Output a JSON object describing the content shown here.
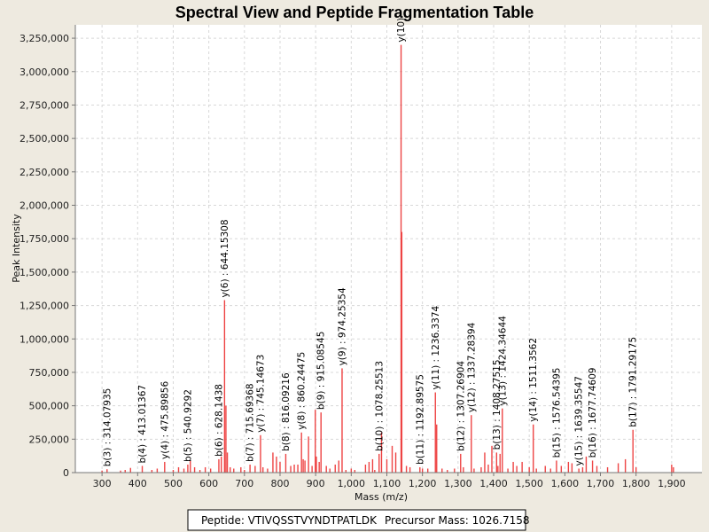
{
  "chart_data": {
    "type": "bar",
    "title": "Spectral View and Peptide Fragmentation Table",
    "xlabel": "Mass (m/z)",
    "ylabel": "Peak Intensity",
    "xlim": [
      225,
      1985
    ],
    "ylim": [
      0,
      3350000
    ],
    "x_ticks": [
      300,
      400,
      500,
      600,
      700,
      800,
      900,
      1000,
      1100,
      1200,
      1300,
      1400,
      1500,
      1600,
      1700,
      1800,
      1900
    ],
    "x_tick_labels": [
      "300",
      "400",
      "500",
      "600",
      "700",
      "800",
      "900",
      "1,000",
      "1,100",
      "1,200",
      "1,300",
      "1,400",
      "1,500",
      "1,600",
      "1,700",
      "1,800",
      "1,900"
    ],
    "y_ticks": [
      0,
      250000,
      500000,
      750000,
      1000000,
      1250000,
      1500000,
      1750000,
      2000000,
      2250000,
      2500000,
      2750000,
      3000000,
      3250000
    ],
    "y_tick_labels": [
      "0",
      "250,000",
      "500,000",
      "750,000",
      "1,000,000",
      "1,250,000",
      "1,500,000",
      "1,750,000",
      "2,000,000",
      "2,250,000",
      "2,500,000",
      "2,750,000",
      "3,000,000",
      "3,250,000"
    ],
    "grid": true,
    "bar_color": "#ee4444",
    "peaks": [
      [
        300,
        15000
      ],
      [
        314.07935,
        25000
      ],
      [
        352,
        15000
      ],
      [
        365,
        20000
      ],
      [
        380,
        35000
      ],
      [
        413.01367,
        50000
      ],
      [
        440,
        20000
      ],
      [
        455,
        30000
      ],
      [
        475.89856,
        80000
      ],
      [
        500,
        20000
      ],
      [
        515,
        40000
      ],
      [
        530,
        30000
      ],
      [
        540.9292,
        60000
      ],
      [
        548,
        90000
      ],
      [
        560,
        40000
      ],
      [
        575,
        20000
      ],
      [
        590,
        40000
      ],
      [
        605,
        30000
      ],
      [
        628.1438,
        100000
      ],
      [
        635,
        120000
      ],
      [
        644.15308,
        1290000
      ],
      [
        648,
        500000
      ],
      [
        652,
        150000
      ],
      [
        660,
        40000
      ],
      [
        670,
        30000
      ],
      [
        690,
        40000
      ],
      [
        700,
        20000
      ],
      [
        715.69368,
        60000
      ],
      [
        730,
        50000
      ],
      [
        745.14673,
        280000
      ],
      [
        752,
        40000
      ],
      [
        765,
        30000
      ],
      [
        780,
        150000
      ],
      [
        790,
        120000
      ],
      [
        800,
        80000
      ],
      [
        816.09216,
        140000
      ],
      [
        830,
        50000
      ],
      [
        840,
        60000
      ],
      [
        850,
        60000
      ],
      [
        860.24475,
        300000
      ],
      [
        865,
        100000
      ],
      [
        870,
        90000
      ],
      [
        880,
        270000
      ],
      [
        890,
        50000
      ],
      [
        899,
        470000
      ],
      [
        902,
        120000
      ],
      [
        910,
        80000
      ],
      [
        915.08545,
        450000
      ],
      [
        930,
        50000
      ],
      [
        940,
        30000
      ],
      [
        955,
        60000
      ],
      [
        965,
        90000
      ],
      [
        974.25354,
        780000
      ],
      [
        985,
        20000
      ],
      [
        1000,
        30000
      ],
      [
        1010,
        20000
      ],
      [
        1040,
        60000
      ],
      [
        1050,
        80000
      ],
      [
        1060,
        100000
      ],
      [
        1066,
        20000
      ],
      [
        1078.25513,
        140000
      ],
      [
        1085,
        300000
      ],
      [
        1100,
        100000
      ],
      [
        1115,
        200000
      ],
      [
        1125,
        150000
      ],
      [
        1140,
        3200000
      ],
      [
        1142,
        1800000
      ],
      [
        1155,
        50000
      ],
      [
        1165,
        40000
      ],
      [
        1192.89575,
        40000
      ],
      [
        1200,
        30000
      ],
      [
        1215,
        30000
      ],
      [
        1236.3374,
        600000
      ],
      [
        1240,
        360000
      ],
      [
        1255,
        30000
      ],
      [
        1270,
        20000
      ],
      [
        1290,
        30000
      ],
      [
        1307.26904,
        140000
      ],
      [
        1315,
        40000
      ],
      [
        1337.28394,
        430000
      ],
      [
        1345,
        30000
      ],
      [
        1365,
        40000
      ],
      [
        1375,
        150000
      ],
      [
        1385,
        60000
      ],
      [
        1395,
        200000
      ],
      [
        1408.27515,
        150000
      ],
      [
        1412,
        50000
      ],
      [
        1418,
        140000
      ],
      [
        1424.34644,
        480000
      ],
      [
        1440,
        30000
      ],
      [
        1455,
        80000
      ],
      [
        1465,
        50000
      ],
      [
        1480,
        80000
      ],
      [
        1500,
        40000
      ],
      [
        1511.3562,
        360000
      ],
      [
        1520,
        30000
      ],
      [
        1545,
        50000
      ],
      [
        1560,
        30000
      ],
      [
        1576.54395,
        90000
      ],
      [
        1590,
        50000
      ],
      [
        1610,
        80000
      ],
      [
        1620,
        70000
      ],
      [
        1639.35547,
        30000
      ],
      [
        1650,
        40000
      ],
      [
        1660,
        120000
      ],
      [
        1677.74609,
        90000
      ],
      [
        1690,
        50000
      ],
      [
        1720,
        40000
      ],
      [
        1750,
        70000
      ],
      [
        1770,
        100000
      ],
      [
        1791.29175,
        320000
      ],
      [
        1800,
        40000
      ],
      [
        1900,
        60000
      ],
      [
        1905,
        40000
      ]
    ],
    "annotations": [
      {
        "mz": 314.07935,
        "text": "b(3) : 314.07935"
      },
      {
        "mz": 413.01367,
        "text": "b(4) : 413.01367"
      },
      {
        "mz": 475.89856,
        "text": "y(4) : 475.89856"
      },
      {
        "mz": 540.9292,
        "text": "b(5) : 540.9292"
      },
      {
        "mz": 628.1438,
        "text": "b(6) : 628.1438"
      },
      {
        "mz": 644.15308,
        "text": "y(6) : 644.15308"
      },
      {
        "mz": 715.69368,
        "text": "b(7) : 715.69368"
      },
      {
        "mz": 745.14673,
        "text": "y(7) : 745.14673"
      },
      {
        "mz": 816.09216,
        "text": "b(8) : 816.09216"
      },
      {
        "mz": 860.24475,
        "text": "y(8) : 860.24475"
      },
      {
        "mz": 915.08545,
        "text": "b(9) : 915.08545"
      },
      {
        "mz": 974.25354,
        "text": "y(9) : 974.25354"
      },
      {
        "mz": 1078.25513,
        "text": "b(10) : 1078.25513"
      },
      {
        "mz": 1140,
        "text": "y(10)"
      },
      {
        "mz": 1192.89575,
        "text": "b(11) : 1192.89575"
      },
      {
        "mz": 1236.3374,
        "text": "y(11) : 1236.3374"
      },
      {
        "mz": 1307.26904,
        "text": "b(12) : 1307.26904"
      },
      {
        "mz": 1337.28394,
        "text": "y(12) : 1337.28394"
      },
      {
        "mz": 1408.27515,
        "text": "b(13) : 1408.27515"
      },
      {
        "mz": 1424.34644,
        "text": "y(13) : 1424.34644"
      },
      {
        "mz": 1511.3562,
        "text": "y(14) : 1511.3562"
      },
      {
        "mz": 1576.54395,
        "text": "b(15) : 1576.54395"
      },
      {
        "mz": 1639.35547,
        "text": "y(15) : 1639.35547"
      },
      {
        "mz": 1677.74609,
        "text": "b(16) : 1677.74609"
      },
      {
        "mz": 1791.29175,
        "text": "b(17) : 1791.29175"
      }
    ]
  },
  "legend": {
    "peptide_label": "Peptide: VTIVQSSTVYNDTPATLDK",
    "precursor_label": "Precursor Mass: 1026.7158"
  }
}
